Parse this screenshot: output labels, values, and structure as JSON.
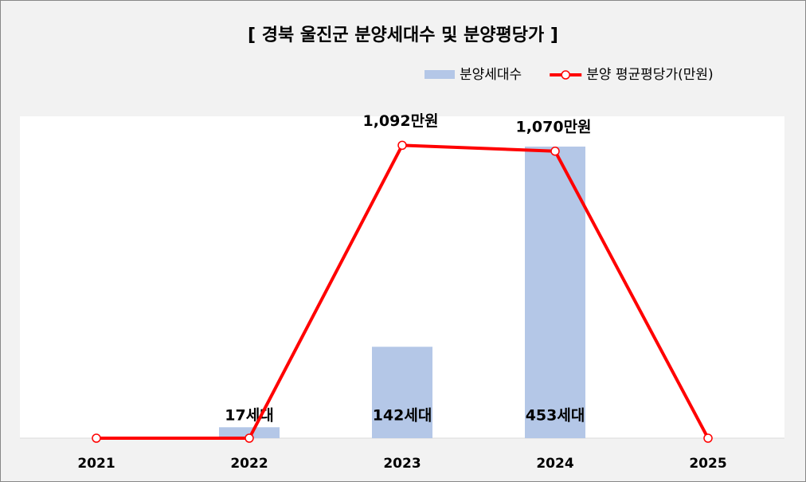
{
  "chart_data": {
    "type": "combo",
    "title": "[ 경북 울진군 분양세대수 및 분양평당가 ]",
    "categories": [
      "2021",
      "2022",
      "2023",
      "2024",
      "2025"
    ],
    "series": [
      {
        "name": "분양세대수",
        "type": "bar",
        "color": "#b4c7e7",
        "values": [
          null,
          17,
          142,
          453,
          null
        ],
        "value_labels": [
          null,
          "17세대",
          "142세대",
          "453세대",
          null
        ]
      },
      {
        "name": "분양 평균평당가(만원)",
        "type": "line",
        "axis": "y2",
        "color": "#ff0000",
        "values": [
          0,
          0,
          1092,
          1070,
          0
        ],
        "value_labels": [
          null,
          null,
          "1,092만원",
          "1,070만원",
          null
        ]
      }
    ],
    "ylim": [
      0,
      500
    ],
    "y2lim": [
      0,
      1200
    ],
    "legend": "top-right"
  }
}
